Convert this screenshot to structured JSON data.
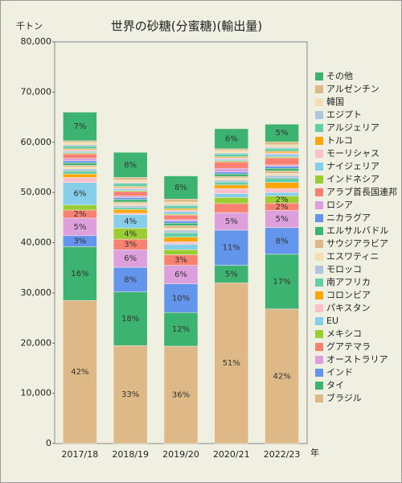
{
  "chart_data": {
    "type": "stacked_bar",
    "title": "世界の砂糖(分蜜糖)(輸出量)",
    "y_unit": "千トン",
    "x_unit": "年",
    "categories": [
      "2017/18",
      "2018/19",
      "2019/20",
      "2020/21",
      "2022/23"
    ],
    "ylim": [
      0,
      80000
    ],
    "yticks": [
      0,
      {
        "value": 10000,
        "label": "10,000"
      },
      {
        "value": 20000,
        "label": "20,000"
      },
      {
        "value": 30000,
        "label": "30,000"
      },
      {
        "value": 40000,
        "label": "40,000"
      },
      {
        "value": 50000,
        "label": "50,000"
      },
      {
        "value": 60000,
        "label": "60,000"
      },
      {
        "value": 70000,
        "label": "70,000"
      },
      {
        "value": 80000,
        "label": "80,000"
      }
    ],
    "series": [
      {
        "name": "ブラジル",
        "color": "#deb887",
        "values": [
          28500,
          19500,
          19400,
          32000,
          26800
        ],
        "share_labels": [
          "42%",
          "33%",
          "36%",
          "51%",
          "42%"
        ]
      },
      {
        "name": "タイ",
        "color": "#3cb371",
        "values": [
          10700,
          10700,
          6700,
          3500,
          10900
        ],
        "share_labels": [
          "16%",
          "18%",
          "12%",
          "5%",
          "17%"
        ]
      },
      {
        "name": "インド",
        "color": "#6495ed",
        "values": [
          2200,
          4900,
          5700,
          7000,
          5300
        ],
        "share_labels": [
          "3%",
          "8%",
          "10%",
          "11%",
          "8%"
        ]
      },
      {
        "name": "オーストラリア",
        "color": "#dda0dd",
        "values": [
          3500,
          3500,
          3700,
          3500,
          3400
        ],
        "share_labels": [
          "5%",
          "6%",
          "6%",
          "5%",
          "5%"
        ]
      },
      {
        "name": "グアテマラ",
        "color": "#fa8072",
        "values": [
          1600,
          2100,
          2100,
          1800,
          1500
        ],
        "share_labels": [
          "2%",
          "3%",
          "3%",
          null,
          "2%"
        ]
      },
      {
        "name": "メキシコ",
        "color": "#9acd32",
        "values": [
          1000,
          2200,
          1000,
          1200,
          1400
        ],
        "share_labels": [
          null,
          "4%",
          null,
          null,
          "2%"
        ]
      },
      {
        "name": "EU",
        "color": "#87ceeb",
        "values": [
          4500,
          2700,
          1100,
          800,
          700
        ],
        "share_labels": [
          "6%",
          "4%",
          null,
          null,
          null
        ]
      },
      {
        "name": "パキスタン",
        "color": "#ffc0cb",
        "values": [
          1000,
          300,
          500,
          1000,
          800
        ]
      },
      {
        "name": "コロンビア",
        "color": "#ffa500",
        "values": [
          700,
          700,
          900,
          700,
          1200
        ]
      },
      {
        "name": "南アフリカ",
        "color": "#66cdaa",
        "values": [
          600,
          400,
          900,
          600,
          900
        ]
      },
      {
        "name": "モロッコ",
        "color": "#b0c4de",
        "values": [
          400,
          400,
          500,
          400,
          500
        ]
      },
      {
        "name": "エスワティニ",
        "color": "#f5deb3",
        "values": [
          400,
          400,
          400,
          400,
          400
        ]
      },
      {
        "name": "サウジアラビア",
        "color": "#deb887",
        "values": [
          300,
          300,
          500,
          300,
          500
        ]
      },
      {
        "name": "エルサルバドル",
        "color": "#3cb371",
        "values": [
          500,
          500,
          500,
          500,
          500
        ]
      },
      {
        "name": "ニカラグア",
        "color": "#6495ed",
        "values": [
          400,
          400,
          400,
          400,
          400
        ]
      },
      {
        "name": "ロシア",
        "color": "#dda0dd",
        "values": [
          500,
          300,
          300,
          700,
          300
        ]
      },
      {
        "name": "アラブ首長国連邦",
        "color": "#fa8072",
        "values": [
          900,
          900,
          900,
          1300,
          1400
        ]
      },
      {
        "name": "インドネシア",
        "color": "#9acd32",
        "values": [
          200,
          200,
          200,
          200,
          200
        ]
      },
      {
        "name": "ナイジェリア",
        "color": "#87ceeb",
        "values": [
          300,
          300,
          500,
          300,
          500
        ]
      },
      {
        "name": "モーリシャス",
        "color": "#ffc0cb",
        "values": [
          300,
          300,
          300,
          300,
          300
        ]
      },
      {
        "name": "トルコ",
        "color": "#ffa500",
        "values": [
          200,
          200,
          300,
          200,
          300
        ]
      },
      {
        "name": "アルジェリア",
        "color": "#66cdaa",
        "values": [
          600,
          600,
          600,
          600,
          600
        ]
      },
      {
        "name": "エジプト",
        "color": "#b0c4de",
        "values": [
          200,
          200,
          200,
          200,
          200
        ]
      },
      {
        "name": "韓国",
        "color": "#f5deb3",
        "values": [
          500,
          500,
          500,
          500,
          500
        ]
      },
      {
        "name": "アルゼンチン",
        "color": "#deb887",
        "values": [
          300,
          500,
          600,
          300,
          600
        ]
      },
      {
        "name": "その他",
        "color": "#3cb371",
        "values": [
          5700,
          5000,
          4600,
          4000,
          3500
        ],
        "share_labels": [
          "7%",
          "8%",
          "8%",
          "6%",
          "5%"
        ]
      }
    ]
  }
}
